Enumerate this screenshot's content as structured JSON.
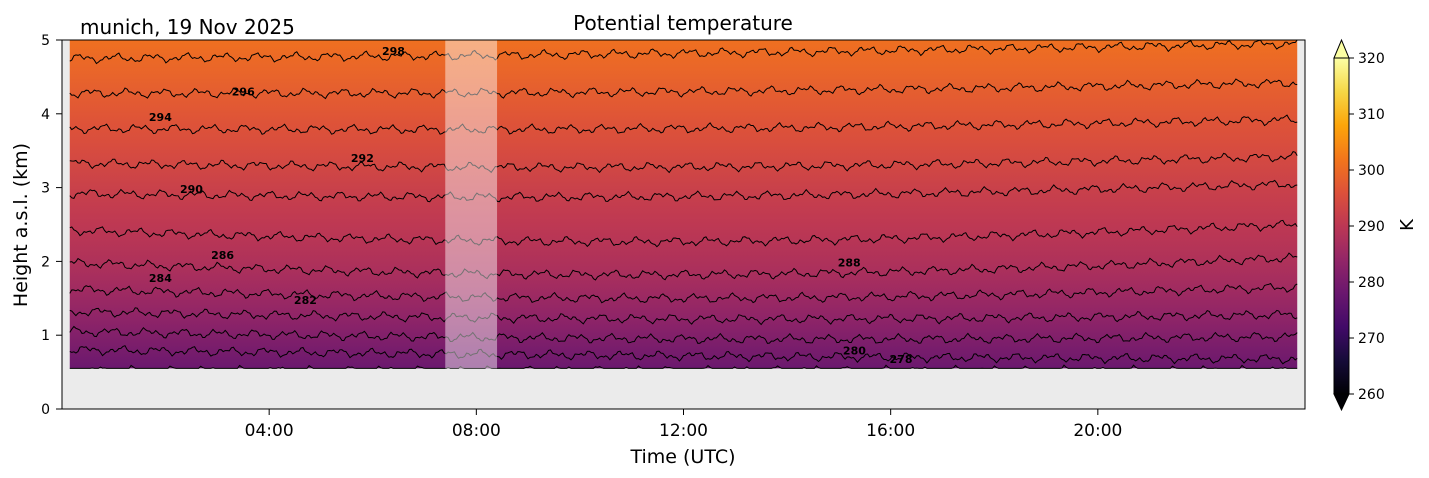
{
  "chart_data": {
    "type": "heatmap",
    "title": "Potential temperature",
    "subtitle": "munich, 19 Nov 2025",
    "xlabel": "Time (UTC)",
    "ylabel": "Height a.s.l. (km)",
    "xlim_hours": [
      0,
      24
    ],
    "ylim_km": [
      0,
      5
    ],
    "x_ticks": [
      {
        "hours": 4,
        "label": "04:00"
      },
      {
        "hours": 8,
        "label": "08:00"
      },
      {
        "hours": 12,
        "label": "12:00"
      },
      {
        "hours": 16,
        "label": "16:00"
      },
      {
        "hours": 20,
        "label": "20:00"
      }
    ],
    "y_ticks": [
      {
        "km": 0,
        "label": "0"
      },
      {
        "km": 1,
        "label": "1"
      },
      {
        "km": 2,
        "label": "2"
      },
      {
        "km": 3,
        "label": "3"
      },
      {
        "km": 4,
        "label": "4"
      },
      {
        "km": 5,
        "label": "5"
      }
    ],
    "colorbar": {
      "label": "K",
      "range": [
        260,
        320
      ],
      "extend": "both",
      "colormap": "inferno",
      "ticks": [
        {
          "value": 260,
          "label": "260"
        },
        {
          "value": 270,
          "label": "270"
        },
        {
          "value": 280,
          "label": "280"
        },
        {
          "value": 290,
          "label": "290"
        },
        {
          "value": 300,
          "label": "300"
        },
        {
          "value": 310,
          "label": "310"
        },
        {
          "value": 320,
          "label": "320"
        }
      ]
    },
    "data_extent": {
      "time_start_hours": 0.15,
      "time_end_hours": 23.85,
      "height_bottom_km": 0.55,
      "height_top_km": 5.0
    },
    "gap_hours": [
      7.4,
      8.4
    ],
    "background_color": "#ebebeb",
    "contour_interval_K": 2,
    "contours": [
      {
        "value": 278,
        "left_km": 0.52,
        "right_km": 0.52,
        "mid_km": 0.52
      },
      {
        "value": 280,
        "left_km": 0.8,
        "right_km": 0.68,
        "mid_km": 0.72
      },
      {
        "value": 282,
        "left_km": 1.05,
        "right_km": 0.98,
        "mid_km": 0.95
      },
      {
        "value": 284,
        "left_km": 1.32,
        "right_km": 1.28,
        "mid_km": 1.22
      },
      {
        "value": 286,
        "left_km": 1.62,
        "right_km": 1.65,
        "mid_km": 1.5
      },
      {
        "value": 288,
        "left_km": 1.98,
        "right_km": 2.05,
        "mid_km": 1.82
      },
      {
        "value": 290,
        "left_km": 2.42,
        "right_km": 2.5,
        "mid_km": 2.27
      },
      {
        "value": 292,
        "left_km": 2.92,
        "right_km": 3.05,
        "mid_km": 2.88
      },
      {
        "value": 294,
        "left_km": 3.33,
        "right_km": 3.42,
        "mid_km": 3.28
      },
      {
        "value": 296,
        "left_km": 3.8,
        "right_km": 3.92,
        "mid_km": 3.8
      },
      {
        "value": 298,
        "left_km": 4.28,
        "right_km": 4.42,
        "mid_km": 4.3
      },
      {
        "value": 300,
        "left_km": 4.75,
        "right_km": 4.95,
        "mid_km": 4.82
      }
    ],
    "contour_labels": [
      {
        "text": "298",
        "hours": 6.4,
        "km": 4.8
      },
      {
        "text": "296",
        "hours": 3.5,
        "km": 4.25
      },
      {
        "text": "294",
        "hours": 1.9,
        "km": 3.9
      },
      {
        "text": "292",
        "hours": 5.8,
        "km": 3.35
      },
      {
        "text": "290",
        "hours": 2.5,
        "km": 2.93
      },
      {
        "text": "286",
        "hours": 3.1,
        "km": 2.03
      },
      {
        "text": "284",
        "hours": 1.9,
        "km": 1.72
      },
      {
        "text": "282",
        "hours": 4.7,
        "km": 1.42
      },
      {
        "text": "288",
        "hours": 15.2,
        "km": 1.93
      },
      {
        "text": "280",
        "hours": 15.3,
        "km": 0.74
      },
      {
        "text": "278",
        "hours": 16.2,
        "km": 0.62
      }
    ]
  }
}
